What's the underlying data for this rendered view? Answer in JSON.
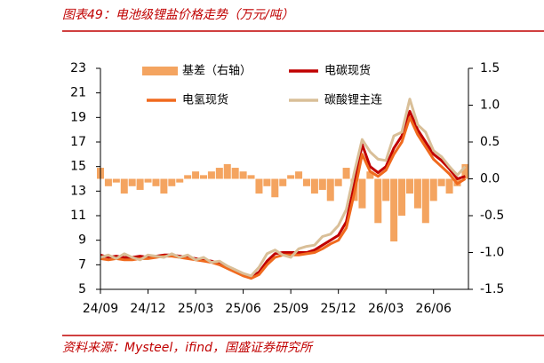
{
  "chart_data": {
    "type": "combo",
    "title": "图表49：电池级锂盐价格走势（万元/吨）",
    "source": "资料来源：Mysteel，ifind，国盛证券研究所",
    "x": [
      0,
      0.5,
      1,
      1.5,
      2,
      2.5,
      3,
      3.5,
      4,
      4.5,
      5,
      5.5,
      6,
      6.5,
      7,
      7.5,
      8,
      8.5,
      9,
      9.5,
      10,
      10.5,
      11,
      11.5,
      12,
      12.5,
      13,
      13.5,
      14,
      14.5,
      15,
      15.5,
      16,
      16.5,
      17,
      17.5,
      18,
      18.5,
      19,
      19.5,
      20,
      20.5,
      21,
      21.5,
      22,
      22.5,
      23
    ],
    "xlim": [
      0,
      23.2
    ],
    "xticks": [
      {
        "value": 0,
        "label": "24/09"
      },
      {
        "value": 3,
        "label": "24/12"
      },
      {
        "value": 6,
        "label": "25/03"
      },
      {
        "value": 9,
        "label": "25/06"
      },
      {
        "value": 12,
        "label": "25/09"
      },
      {
        "value": 15,
        "label": "25/12"
      },
      {
        "value": 18,
        "label": "26/03"
      },
      {
        "value": 21,
        "label": "26/06"
      }
    ],
    "ylim": [
      5,
      23
    ],
    "yticks": [
      5,
      7,
      9,
      11,
      13,
      15,
      17,
      19,
      21,
      23
    ],
    "y2lim": [
      -1.5,
      1.5
    ],
    "y2ticks": [
      -1.5,
      {
        "value": -1,
        "label": "-1.0"
      },
      -0.5,
      {
        "value": 0,
        "label": "0.0"
      },
      0.5,
      {
        "value": 1,
        "label": "1.0"
      },
      1.5
    ],
    "series": [
      {
        "name": "基差（右轴）",
        "type": "bar",
        "axis": "y2",
        "color": "#f4a460",
        "values": [
          0.15,
          -0.1,
          -0.05,
          -0.2,
          -0.1,
          -0.15,
          -0.05,
          -0.1,
          -0.2,
          -0.1,
          -0.05,
          0.05,
          0.1,
          0.05,
          0.1,
          0.15,
          0.2,
          0.15,
          0.1,
          0.05,
          -0.2,
          -0.1,
          -0.25,
          -0.1,
          0.05,
          0.1,
          -0.1,
          -0.2,
          -0.15,
          -0.3,
          -0.1,
          0.15,
          -0.3,
          -0.4,
          0.1,
          -0.6,
          -0.3,
          -0.85,
          -0.5,
          -0.2,
          -0.4,
          -0.6,
          -0.3,
          -0.1,
          -0.2,
          -0.1,
          0.2
        ]
      },
      {
        "name": "电碳现货",
        "type": "line",
        "color": "#c00000",
        "values": [
          7.8,
          7.6,
          7.7,
          7.6,
          7.6,
          7.7,
          7.6,
          7.7,
          7.8,
          7.8,
          7.7,
          7.6,
          7.5,
          7.4,
          7.3,
          7.1,
          6.8,
          6.5,
          6.2,
          6.0,
          6.4,
          7.3,
          7.9,
          8.0,
          8.0,
          8.0,
          8.0,
          8.2,
          8.6,
          9.0,
          9.4,
          10.5,
          13.5,
          16.8,
          15.0,
          14.5,
          15.0,
          16.5,
          17.5,
          19.5,
          18.0,
          17.0,
          16.0,
          15.5,
          14.8,
          14.0,
          14.2
        ]
      },
      {
        "name": "电氢现货",
        "type": "line",
        "color": "#f06a1e",
        "values": [
          7.5,
          7.4,
          7.5,
          7.4,
          7.4,
          7.5,
          7.5,
          7.6,
          7.7,
          7.7,
          7.6,
          7.5,
          7.4,
          7.3,
          7.2,
          7.0,
          6.7,
          6.4,
          6.1,
          5.9,
          6.2,
          7.0,
          7.6,
          7.8,
          7.8,
          7.8,
          7.9,
          8.0,
          8.3,
          8.7,
          9.0,
          10.0,
          12.8,
          16.0,
          14.6,
          14.2,
          14.7,
          16.0,
          17.0,
          19.0,
          17.6,
          16.6,
          15.6,
          15.0,
          14.4,
          13.6,
          14.0
        ]
      },
      {
        "name": "碳酸锂主连",
        "type": "line",
        "color": "#d9bf98",
        "values": [
          7.6,
          7.8,
          7.5,
          7.9,
          7.6,
          7.4,
          7.8,
          7.7,
          7.6,
          7.9,
          7.6,
          7.8,
          7.4,
          7.6,
          7.2,
          7.3,
          6.9,
          6.6,
          6.3,
          6.1,
          6.8,
          7.9,
          8.2,
          7.8,
          7.6,
          8.3,
          8.5,
          8.6,
          9.3,
          9.5,
          10.2,
          11.5,
          14.5,
          17.2,
          16.2,
          15.6,
          15.5,
          17.5,
          17.8,
          20.5,
          18.4,
          17.8,
          16.3,
          15.8,
          15.0,
          14.3,
          15.0
        ]
      }
    ]
  }
}
